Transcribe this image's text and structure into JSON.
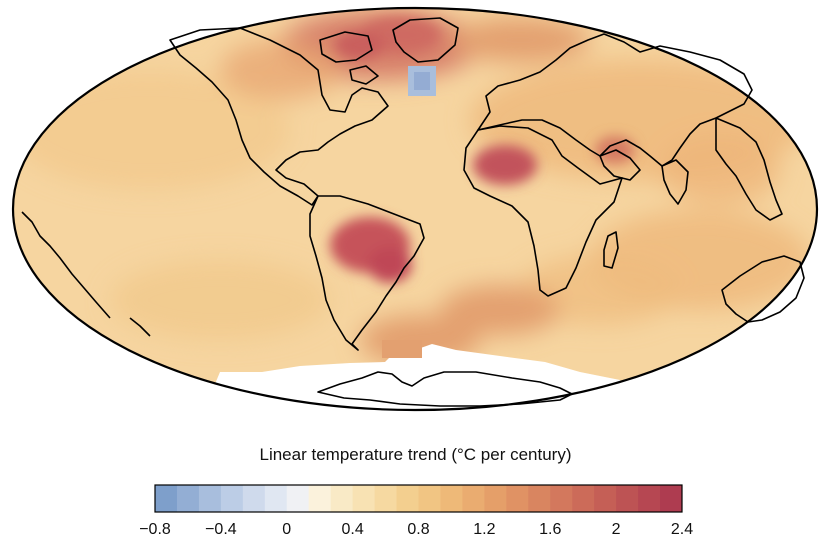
{
  "colorbar": {
    "title": "Linear temperature trend (°C per century)",
    "min": -0.8,
    "max": 2.4,
    "tick_labels": [
      "−0.8",
      "−0.4",
      "0",
      "0.4",
      "0.8",
      "1.2",
      "1.6",
      "2",
      "2.4"
    ],
    "tick_values": [
      -0.8,
      -0.4,
      0,
      0.4,
      0.8,
      1.2,
      1.6,
      2,
      2.4
    ],
    "bins": 24,
    "colors": [
      "#7e9fcb",
      "#93aed4",
      "#a8bedd",
      "#bccde6",
      "#cfdaec",
      "#e0e7f2",
      "#f0f1f4",
      "#fbf2dc",
      "#f9eac6",
      "#f8e2b3",
      "#f6d9a1",
      "#f3cf8f",
      "#f1c583",
      "#eeb978",
      "#eaac70",
      "#e59f69",
      "#e09264",
      "#d98560",
      "#d3785d",
      "#cc6b59",
      "#c55f56",
      "#bd5354",
      "#b64752",
      "#ae3c50"
    ]
  },
  "map": {
    "projection": "mollweide",
    "ocean_base_color": "#f6d5a0",
    "no_data_color": "#ffffff",
    "coastline_color": "#000000"
  }
}
